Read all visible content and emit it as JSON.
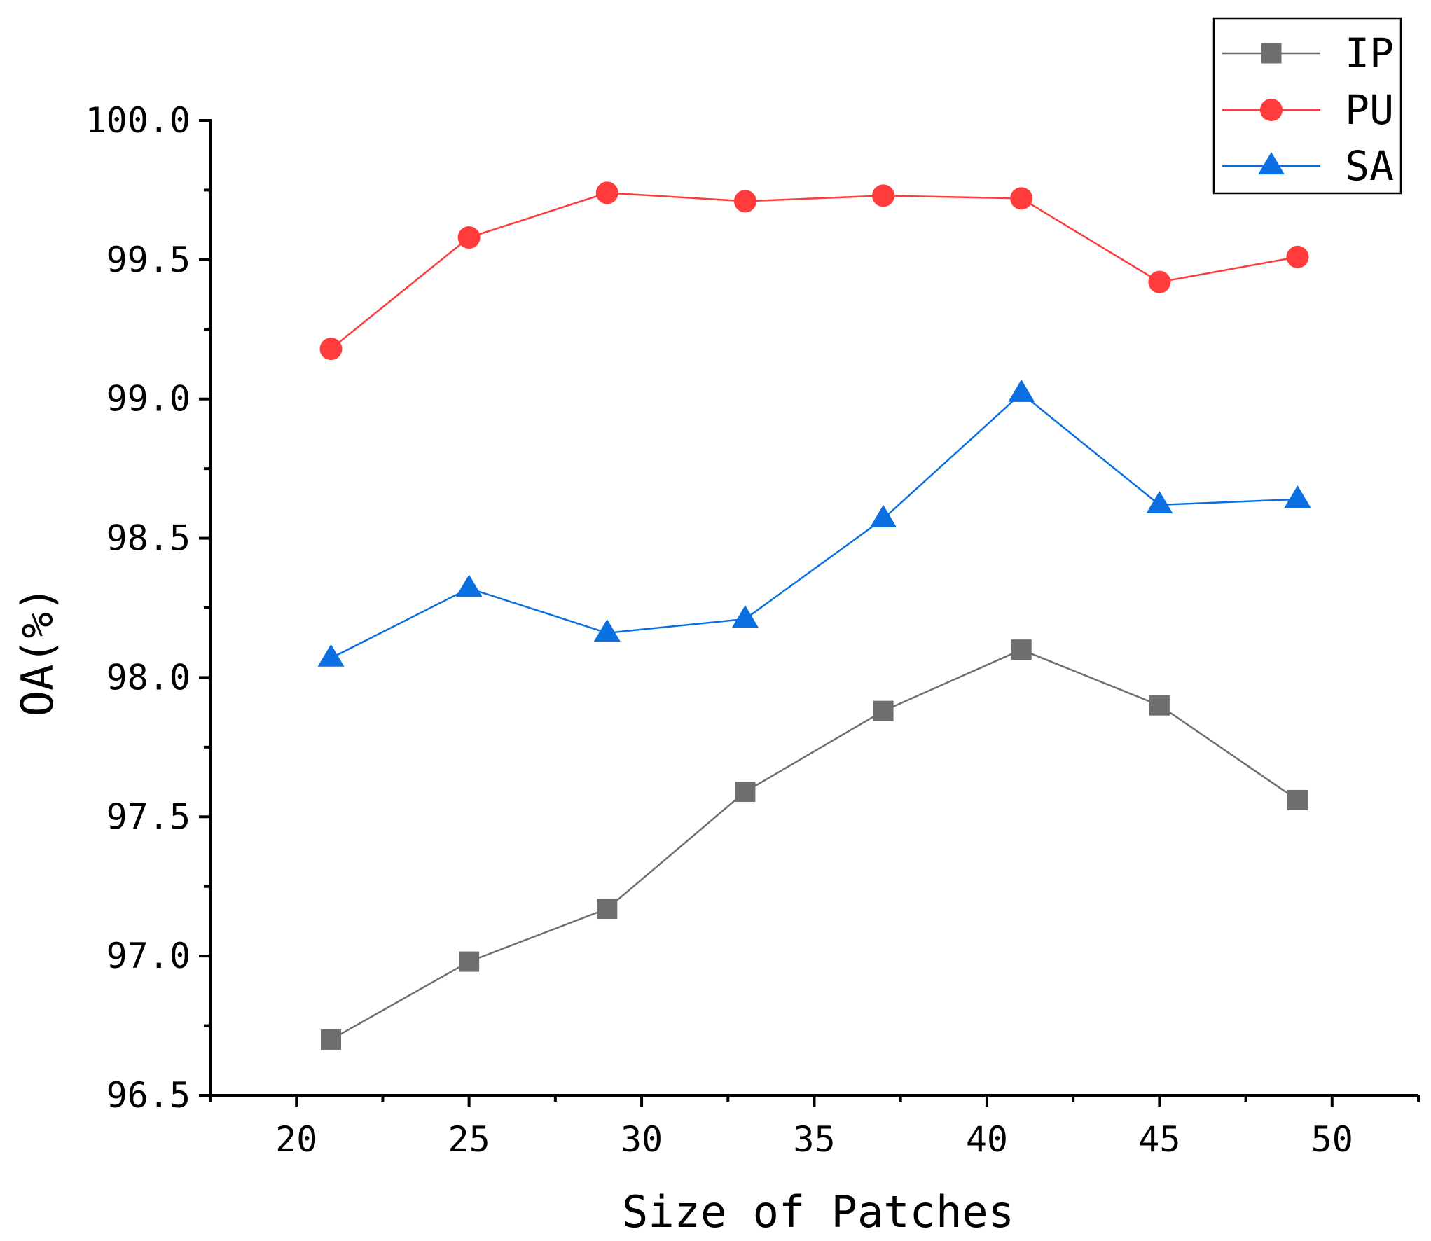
{
  "chart_data": {
    "type": "line",
    "title": "",
    "xlabel": "Size of Patches",
    "ylabel": "OA(%)",
    "xlim": [
      17.5,
      52.5
    ],
    "ylim": [
      96.5,
      100.0
    ],
    "x": [
      21,
      25,
      29,
      33,
      37,
      41,
      45,
      49
    ],
    "x_ticks": [
      "20",
      "25",
      "30",
      "35",
      "40",
      "45",
      "50"
    ],
    "y_ticks": [
      "96.5",
      "97.0",
      "97.5",
      "98.0",
      "98.5",
      "99.0",
      "99.5",
      "100.0"
    ],
    "legend_position": "top-right",
    "grid": false,
    "series": [
      {
        "name": "IP",
        "marker": "square",
        "color": "#6e6e6e",
        "values": [
          96.7,
          96.98,
          97.17,
          97.59,
          97.88,
          98.1,
          97.9,
          97.56
        ]
      },
      {
        "name": "PU",
        "marker": "circle",
        "color": "#ff3b3b",
        "values": [
          99.18,
          99.58,
          99.74,
          99.71,
          99.73,
          99.72,
          99.42,
          99.51
        ]
      },
      {
        "name": "SA",
        "marker": "triangle",
        "color": "#0a6fe0",
        "values": [
          98.07,
          98.32,
          98.16,
          98.21,
          98.57,
          99.02,
          98.62,
          98.64
        ]
      }
    ]
  }
}
